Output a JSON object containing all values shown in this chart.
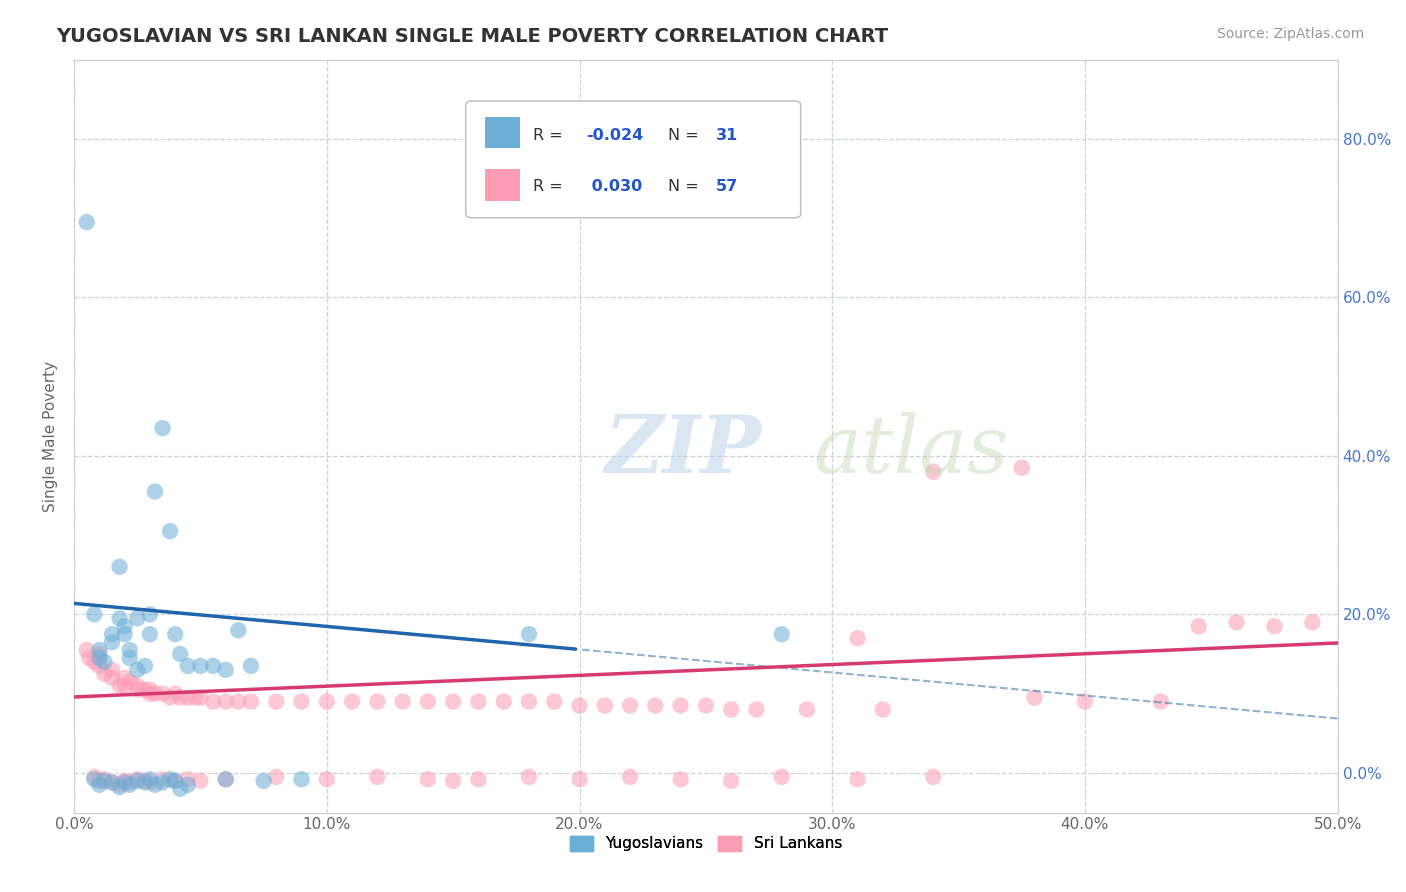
{
  "title": "YUGOSLAVIAN VS SRI LANKAN SINGLE MALE POVERTY CORRELATION CHART",
  "source": "Source: ZipAtlas.com",
  "ylabel": "Single Male Poverty",
  "xlim": [
    0.0,
    0.5
  ],
  "ylim": [
    -0.05,
    0.9
  ],
  "xtick_vals": [
    0.0,
    0.1,
    0.2,
    0.3,
    0.4,
    0.5
  ],
  "ytick_vals": [
    0.0,
    0.2,
    0.4,
    0.6,
    0.8
  ],
  "legend1_R": "-0.024",
  "legend1_N": "31",
  "legend2_R": "0.030",
  "legend2_N": "57",
  "blue_color": "#6baed6",
  "pink_color": "#fc9cb4",
  "blue_line_color": "#2166ac",
  "pink_line_color": "#d63a6e",
  "grid_color": "#c0c8d0",
  "blue_x": [
    0.005,
    0.008,
    0.01,
    0.012,
    0.015,
    0.018,
    0.02,
    0.02,
    0.02,
    0.022,
    0.022,
    0.022,
    0.025,
    0.025,
    0.028,
    0.028,
    0.03,
    0.03,
    0.03,
    0.032,
    0.035,
    0.04,
    0.042,
    0.045,
    0.05,
    0.055,
    0.06,
    0.065,
    0.07,
    0.18,
    0.28
  ],
  "blue_y": [
    0.69,
    0.2,
    0.17,
    0.165,
    0.16,
    0.155,
    0.18,
    0.175,
    0.17,
    0.15,
    0.145,
    0.13,
    0.19,
    0.13,
    0.135,
    0.26,
    0.2,
    0.18,
    0.13,
    0.17,
    0.43,
    0.35,
    0.3,
    0.135,
    0.13,
    0.135,
    0.13,
    0.18,
    0.13,
    0.17,
    0.17
  ],
  "pink_x": [
    0.005,
    0.008,
    0.01,
    0.012,
    0.015,
    0.018,
    0.02,
    0.02,
    0.022,
    0.022,
    0.025,
    0.025,
    0.028,
    0.03,
    0.03,
    0.032,
    0.035,
    0.04,
    0.045,
    0.048,
    0.05,
    0.055,
    0.06,
    0.065,
    0.07,
    0.075,
    0.08,
    0.09,
    0.1,
    0.11,
    0.12,
    0.13,
    0.14,
    0.15,
    0.16,
    0.17,
    0.18,
    0.19,
    0.2,
    0.21,
    0.22,
    0.23,
    0.24,
    0.25,
    0.26,
    0.27,
    0.29,
    0.31,
    0.32,
    0.34,
    0.38,
    0.4,
    0.43,
    0.45,
    0.46,
    0.47,
    0.495
  ],
  "pink_y": [
    0.15,
    0.13,
    0.13,
    0.13,
    0.125,
    0.12,
    0.15,
    0.12,
    0.12,
    0.11,
    0.11,
    0.11,
    0.11,
    0.11,
    0.1,
    0.1,
    0.1,
    0.1,
    0.1,
    0.095,
    0.095,
    0.095,
    0.09,
    0.09,
    0.09,
    0.09,
    0.09,
    0.09,
    0.09,
    0.09,
    0.09,
    0.09,
    0.09,
    0.09,
    0.09,
    0.09,
    0.09,
    0.09,
    0.09,
    0.085,
    0.085,
    0.085,
    0.085,
    0.085,
    0.085,
    0.08,
    0.08,
    0.08,
    0.17,
    0.38,
    0.09,
    0.09,
    0.09,
    0.19,
    0.19,
    0.2,
    0.19
  ],
  "blue_neg_x": [
    0.005,
    0.008,
    0.01,
    0.012,
    0.015,
    0.018,
    0.02,
    0.022,
    0.025,
    0.028,
    0.03,
    0.032,
    0.035,
    0.038,
    0.04,
    0.045,
    0.05,
    0.055,
    0.06,
    0.065,
    0.07,
    0.075,
    0.08,
    0.085,
    0.09,
    0.1,
    0.12,
    0.14,
    0.16,
    0.18,
    0.2
  ],
  "blue_neg_y": [
    -0.005,
    -0.008,
    -0.01,
    -0.01,
    -0.012,
    -0.015,
    -0.01,
    -0.012,
    -0.015,
    -0.008,
    -0.01,
    -0.012,
    -0.008,
    -0.01,
    -0.015,
    -0.008,
    -0.01,
    -0.005,
    -0.008,
    -0.01,
    -0.005,
    -0.008,
    -0.01,
    -0.012,
    -0.005,
    -0.008,
    -0.005,
    -0.008,
    -0.005,
    -0.008,
    -0.005
  ],
  "background_color": "#ffffff"
}
